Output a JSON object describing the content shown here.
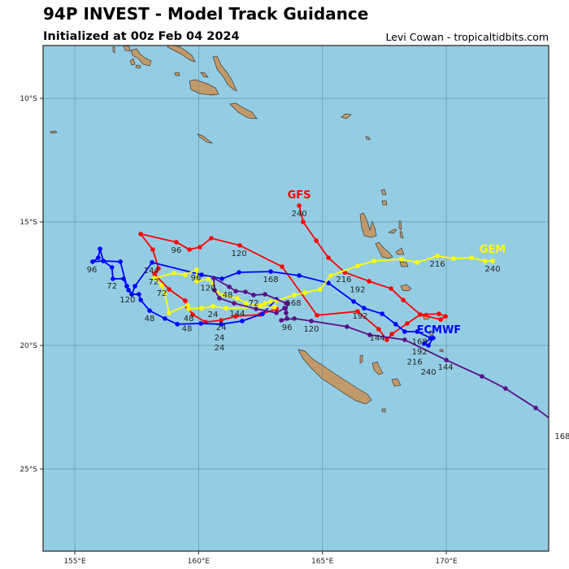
{
  "header": {
    "title": "94P INVEST - Model Track Guidance",
    "subtitle": "Initialized at 00z Feb 04 2024",
    "credit": "Levi Cowan - tropicaltidbits.com"
  },
  "colors": {
    "ocean": "#94cde3",
    "land": "#c29a6a",
    "grid": "#5d8a9c"
  },
  "chart_data": {
    "type": "line",
    "title": "94P INVEST - Model Track Guidance",
    "xlabel": "",
    "ylabel": "",
    "xlim": [
      153.7,
      174.1
    ],
    "ylim": [
      -28.3,
      -7.9
    ],
    "grid": true,
    "x_ticks": [
      {
        "value": 155,
        "label": "155°E"
      },
      {
        "value": 160,
        "label": "160°E"
      },
      {
        "value": 165,
        "label": "165°E"
      },
      {
        "value": 170,
        "label": "170°E"
      }
    ],
    "y_ticks": [
      {
        "value": -10,
        "label": "10°S"
      },
      {
        "value": -15,
        "label": "15°S"
      },
      {
        "value": -20,
        "label": "20°S"
      },
      {
        "value": -25,
        "label": "25°S"
      }
    ],
    "series": [
      {
        "name": "GFS",
        "color": "#ff0000",
        "name_pos": [
          164.06,
          -13.91
        ],
        "points": [
          [
            163.14,
            -18.52
          ],
          [
            162.48,
            -18.75
          ],
          [
            161.5,
            -18.82
          ],
          [
            160.91,
            -18.98
          ],
          [
            160.28,
            -19.05
          ],
          [
            159.76,
            -18.75
          ],
          [
            159.53,
            -18.42
          ],
          [
            159.46,
            -18.19
          ],
          [
            158.81,
            -17.73
          ],
          [
            158.22,
            -17.11
          ],
          [
            158.38,
            -16.88
          ],
          [
            158.15,
            -16.12
          ],
          [
            157.66,
            -15.49
          ],
          [
            159.1,
            -15.82
          ],
          [
            159.63,
            -16.12
          ],
          [
            160.05,
            -16.02
          ],
          [
            160.51,
            -15.66
          ],
          [
            161.66,
            -15.95
          ],
          [
            163.37,
            -16.81
          ],
          [
            164.78,
            -18.78
          ],
          [
            166.42,
            -18.62
          ],
          [
            167.27,
            -19.34
          ],
          [
            167.6,
            -19.77
          ],
          [
            167.8,
            -19.54
          ],
          [
            168.42,
            -19.11
          ],
          [
            168.95,
            -18.75
          ],
          [
            169.7,
            -18.72
          ],
          [
            169.97,
            -18.82
          ],
          [
            169.77,
            -18.95
          ],
          [
            168.95,
            -18.75
          ],
          [
            168.26,
            -18.16
          ],
          [
            167.77,
            -17.7
          ],
          [
            166.88,
            -17.4
          ],
          [
            165.9,
            -17.04
          ],
          [
            165.24,
            -16.45
          ],
          [
            164.75,
            -15.76
          ],
          [
            164.22,
            -15.0
          ],
          [
            164.06,
            -14.34
          ]
        ],
        "hour_labels": [
          {
            "text": "24",
            "pos": [
              160.58,
              -18.75
            ]
          },
          {
            "text": "48",
            "pos": [
              159.6,
              -18.91
            ]
          },
          {
            "text": "72",
            "pos": [
              158.18,
              -17.43
            ]
          },
          {
            "text": "96",
            "pos": [
              159.1,
              -16.15
            ]
          },
          {
            "text": "120",
            "pos": [
              161.63,
              -16.28
            ]
          },
          {
            "text": "144",
            "pos": [
              167.21,
              -19.7
            ]
          },
          {
            "text": "168",
            "pos": [
              168.92,
              -19.08
            ]
          },
          {
            "text": "192",
            "pos": [
              166.52,
              -18.82
            ]
          },
          {
            "text": "216",
            "pos": [
              165.86,
              -17.34
            ]
          },
          {
            "text": "240",
            "pos": [
              164.06,
              -14.67
            ]
          }
        ]
      },
      {
        "name": "ECMWF",
        "color": "#0000ff",
        "name_pos": [
          169.7,
          -19.38
        ],
        "points": [
          [
            163.14,
            -18.13
          ],
          [
            162.58,
            -18.72
          ],
          [
            161.76,
            -19.01
          ],
          [
            160.91,
            -19.14
          ],
          [
            160.09,
            -19.11
          ],
          [
            159.14,
            -19.14
          ],
          [
            158.64,
            -18.91
          ],
          [
            158.02,
            -18.59
          ],
          [
            157.66,
            -18.16
          ],
          [
            157.59,
            -17.93
          ],
          [
            157.3,
            -17.93
          ],
          [
            157.17,
            -17.76
          ],
          [
            157.1,
            -17.6
          ],
          [
            156.97,
            -17.3
          ],
          [
            156.54,
            -17.3
          ],
          [
            156.5,
            -16.84
          ],
          [
            156.15,
            -16.58
          ],
          [
            155.72,
            -16.61
          ],
          [
            155.95,
            -16.45
          ],
          [
            156.02,
            -16.09
          ],
          [
            156.15,
            -16.58
          ],
          [
            156.84,
            -16.61
          ],
          [
            157.1,
            -17.6
          ],
          [
            157.3,
            -17.93
          ],
          [
            157.43,
            -17.6
          ],
          [
            158.12,
            -16.64
          ],
          [
            160.12,
            -17.14
          ],
          [
            160.94,
            -17.3
          ],
          [
            161.63,
            -17.04
          ],
          [
            162.91,
            -17.01
          ],
          [
            164.06,
            -17.17
          ],
          [
            165.24,
            -17.47
          ],
          [
            166.26,
            -18.22
          ],
          [
            166.68,
            -18.49
          ],
          [
            167.41,
            -18.72
          ],
          [
            167.96,
            -19.14
          ],
          [
            168.32,
            -19.44
          ],
          [
            168.82,
            -19.44
          ],
          [
            169.37,
            -19.7
          ],
          [
            169.11,
            -19.93
          ],
          [
            169.28,
            -20.0
          ],
          [
            169.47,
            -19.7
          ]
        ],
        "hour_labels": [
          {
            "text": "24",
            "pos": [
              160.91,
              -19.27
            ]
          },
          {
            "text": "48",
            "pos": [
              158.02,
              -18.91
            ]
          },
          {
            "text": "72",
            "pos": [
              156.5,
              -17.6
            ]
          },
          {
            "text": "96",
            "pos": [
              155.69,
              -16.94
            ]
          },
          {
            "text": "120",
            "pos": [
              157.13,
              -18.16
            ]
          },
          {
            "text": "144",
            "pos": [
              158.09,
              -16.97
            ]
          },
          {
            "text": "168",
            "pos": [
              162.91,
              -17.34
            ]
          },
          {
            "text": "192",
            "pos": [
              168.92,
              -19.08
            ]
          },
          {
            "text": "216",
            "pos": [
              168.72,
              -19.8
            ]
          },
          {
            "text": "240",
            "pos": [
              169.28,
              -20.16
            ]
          }
        ]
      },
      {
        "name": "GEM",
        "color": "#ffff00",
        "name_pos": [
          171.87,
          -16.12
        ],
        "points": [
          [
            163.07,
            -18.45
          ],
          [
            161.1,
            -18.49
          ],
          [
            160.58,
            -18.42
          ],
          [
            160.12,
            -18.49
          ],
          [
            159.6,
            -18.52
          ],
          [
            159.56,
            -18.36
          ],
          [
            158.81,
            -18.68
          ],
          [
            158.64,
            -17.93
          ],
          [
            158.51,
            -17.57
          ],
          [
            158.22,
            -17.27
          ],
          [
            159.0,
            -17.07
          ],
          [
            159.46,
            -17.14
          ],
          [
            159.92,
            -16.94
          ],
          [
            159.92,
            -17.4
          ],
          [
            160.38,
            -17.3
          ],
          [
            160.58,
            -17.5
          ],
          [
            160.74,
            -17.86
          ],
          [
            161.0,
            -17.96
          ],
          [
            161.56,
            -18.09
          ],
          [
            161.92,
            -18.29
          ],
          [
            162.48,
            -18.39
          ],
          [
            162.68,
            -18.29
          ],
          [
            162.91,
            -18.22
          ],
          [
            163.14,
            -18.19
          ],
          [
            163.86,
            -17.96
          ],
          [
            164.29,
            -17.86
          ],
          [
            164.91,
            -17.73
          ],
          [
            165.34,
            -17.17
          ],
          [
            166.42,
            -16.78
          ],
          [
            167.08,
            -16.58
          ],
          [
            168.19,
            -16.51
          ],
          [
            168.82,
            -16.64
          ],
          [
            169.64,
            -16.38
          ],
          [
            170.29,
            -16.48
          ],
          [
            171.02,
            -16.45
          ],
          [
            171.57,
            -16.58
          ],
          [
            171.87,
            -16.58
          ]
        ],
        "hour_labels": [
          {
            "text": "24",
            "pos": [
              160.84,
              -18.45
            ]
          },
          {
            "text": "48",
            "pos": [
              159.53,
              -18.59
            ]
          },
          {
            "text": "72",
            "pos": [
              158.51,
              -17.89
            ]
          },
          {
            "text": "96",
            "pos": [
              159.89,
              -17.27
            ]
          },
          {
            "text": "120",
            "pos": [
              160.38,
              -17.63
            ]
          },
          {
            "text": "144",
            "pos": [
              161.56,
              -18.72
            ]
          },
          {
            "text": "168",
            "pos": [
              163.83,
              -18.29
            ]
          },
          {
            "text": "192",
            "pos": [
              166.42,
              -17.07
            ]
          },
          {
            "text": "216",
            "pos": [
              169.64,
              -16.71
            ]
          },
          {
            "text": "240",
            "pos": [
              171.87,
              -16.91
            ]
          }
        ]
      },
      {
        "color": "#5a0f8a",
        "points": [
          [
            163.47,
            -18.49
          ],
          [
            163.14,
            -18.68
          ],
          [
            162.32,
            -18.52
          ],
          [
            161.43,
            -18.29
          ],
          [
            160.84,
            -18.09
          ],
          [
            160.64,
            -17.76
          ],
          [
            160.61,
            -17.27
          ],
          [
            161.24,
            -17.63
          ],
          [
            161.5,
            -17.8
          ],
          [
            161.89,
            -17.83
          ],
          [
            162.22,
            -17.96
          ],
          [
            162.68,
            -17.93
          ],
          [
            163.53,
            -18.29
          ],
          [
            163.6,
            -18.29
          ],
          [
            163.53,
            -18.68
          ],
          [
            163.57,
            -18.91
          ],
          [
            163.34,
            -18.98
          ],
          [
            163.86,
            -18.91
          ],
          [
            164.55,
            -19.01
          ],
          [
            165.99,
            -19.24
          ],
          [
            166.91,
            -19.57
          ],
          [
            168.32,
            -19.77
          ],
          [
            170.0,
            -20.59
          ],
          [
            171.44,
            -21.25
          ],
          [
            172.39,
            -21.74
          ],
          [
            173.61,
            -22.53
          ],
          [
            174.5,
            -23.2
          ]
        ],
        "hour_labels": [
          {
            "text": "24",
            "pos": [
              160.84,
              -19.5
            ]
          },
          {
            "text": "48",
            "pos": [
              161.17,
              -17.96
            ]
          },
          {
            "text": "72",
            "pos": [
              162.22,
              -18.29
            ]
          },
          {
            "text": "96",
            "pos": [
              163.57,
              -19.28
            ]
          },
          {
            "text": "120",
            "pos": [
              164.55,
              -19.34
            ]
          },
          {
            "text": "144",
            "pos": [
              169.97,
              -20.89
            ]
          },
          {
            "text": "168",
            "pos": [
              174.69,
              -23.68
            ]
          }
        ]
      }
    ]
  }
}
